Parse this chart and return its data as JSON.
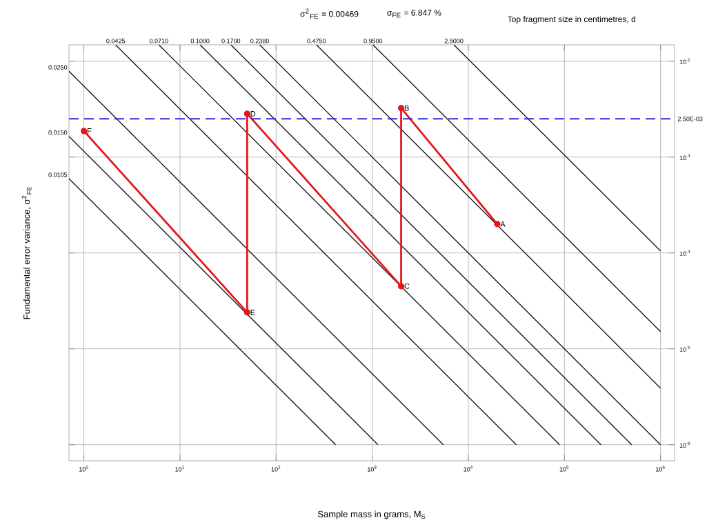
{
  "chart_data": {
    "type": "line",
    "log": "xy",
    "grid": true,
    "xlabel": "Sample mass in grams, M$_{S}$",
    "ylabel": "Fundamental error variance, σ$^{2}$$_{FE}$",
    "xlim": [
      0.7,
      1400000
    ],
    "ylim": [
      6.8e-07,
      0.0148
    ],
    "xticks": [
      {
        "value": 1,
        "label": "10$^{0}$"
      },
      {
        "value": 10,
        "label": "10$^{1}$"
      },
      {
        "value": 100,
        "label": "10$^{2}$"
      },
      {
        "value": 1000,
        "label": "10$^{3}$"
      },
      {
        "value": 10000,
        "label": "10$^{4}$"
      },
      {
        "value": 100000,
        "label": "10$^{5}$"
      },
      {
        "value": 1000000,
        "label": "10$^{6}$"
      }
    ],
    "yticks": [
      {
        "value": 1e-06,
        "label": "10$^{-6}$"
      },
      {
        "value": 1e-05,
        "label": "10$^{-5}$"
      },
      {
        "value": 0.0001,
        "label": "10$^{-4}$"
      },
      {
        "value": 0.001,
        "label": "10$^{-3}$"
      },
      {
        "value": 0.01,
        "label": "10$^{-2}$"
      }
    ],
    "series": [
      {
        "name": "0.0105",
        "color": "#1a1a1a",
        "x": [
          0.7,
          417
        ],
        "values": [
          0.000596,
          1e-06
        ]
      },
      {
        "name": "0.0150",
        "color": "#1a1a1a",
        "x": [
          0.7,
          1148
        ],
        "values": [
          0.00164,
          1e-06
        ]
      },
      {
        "name": "0.0250",
        "color": "#1a1a1a",
        "x": [
          0.7,
          5495
        ],
        "values": [
          0.00785,
          1e-06
        ]
      },
      {
        "name": "0.0425",
        "color": "#1a1a1a",
        "x": [
          2.14,
          31600
        ],
        "values": [
          0.0148,
          1e-06
        ]
      },
      {
        "name": "0.0710",
        "color": "#1a1a1a",
        "x": [
          6.03,
          89100
        ],
        "values": [
          0.0148,
          1e-06
        ]
      },
      {
        "name": "0.1000",
        "color": "#1a1a1a",
        "x": [
          16.2,
          240000
        ],
        "values": [
          0.0148,
          1e-06
        ]
      },
      {
        "name": "0.1700",
        "color": "#1a1a1a",
        "x": [
          33.9,
          501000
        ],
        "values": [
          0.0148,
          1e-06
        ]
      },
      {
        "name": "0.2380",
        "color": "#1a1a1a",
        "x": [
          67.6,
          1000000
        ],
        "values": [
          0.0148,
          1e-06
        ]
      },
      {
        "name": "0.4750",
        "color": "#1a1a1a",
        "x": [
          263,
          1000000
        ],
        "values": [
          0.0148,
          3.89e-06
        ]
      },
      {
        "name": "0.9500",
        "color": "#1a1a1a",
        "x": [
          1020,
          1000000
        ],
        "values": [
          0.0148,
          1.51e-05
        ]
      },
      {
        "name": "2.5000",
        "color": "#1a1a1a",
        "x": [
          7080,
          1000000
        ],
        "values": [
          0.0148,
          0.000105
        ]
      },
      {
        "color": "#e8141c",
        "marker": "circle",
        "x": [
          1,
          50,
          50,
          2000,
          2000,
          20000
        ],
        "values": [
          0.00187,
          2.4e-05,
          0.00283,
          4.5e-05,
          0.00324,
          0.0002
        ]
      }
    ],
    "ref_lines": [
      {
        "axis": "y",
        "value": 0.0025,
        "label": "2.50E-03",
        "color": "#2a2adf",
        "line_style": "dashed"
      }
    ],
    "annotations": [
      "σ$^{2}$$_{FE}$ = 0.00469",
      "σ$_{FE}$ = 6.847 %",
      "Top fragment size in centimetres, d",
      {
        "text": "F",
        "x": 1,
        "y": 0.00187
      },
      {
        "text": "E",
        "x": 50,
        "y": 2.4e-05
      },
      {
        "text": "D",
        "x": 50,
        "y": 0.00283
      },
      {
        "text": "C",
        "x": 2000,
        "y": 4.5e-05
      },
      {
        "text": "B",
        "x": 2000,
        "y": 0.00324
      },
      {
        "text": "A",
        "x": 20000,
        "y": 0.0002
      }
    ]
  }
}
